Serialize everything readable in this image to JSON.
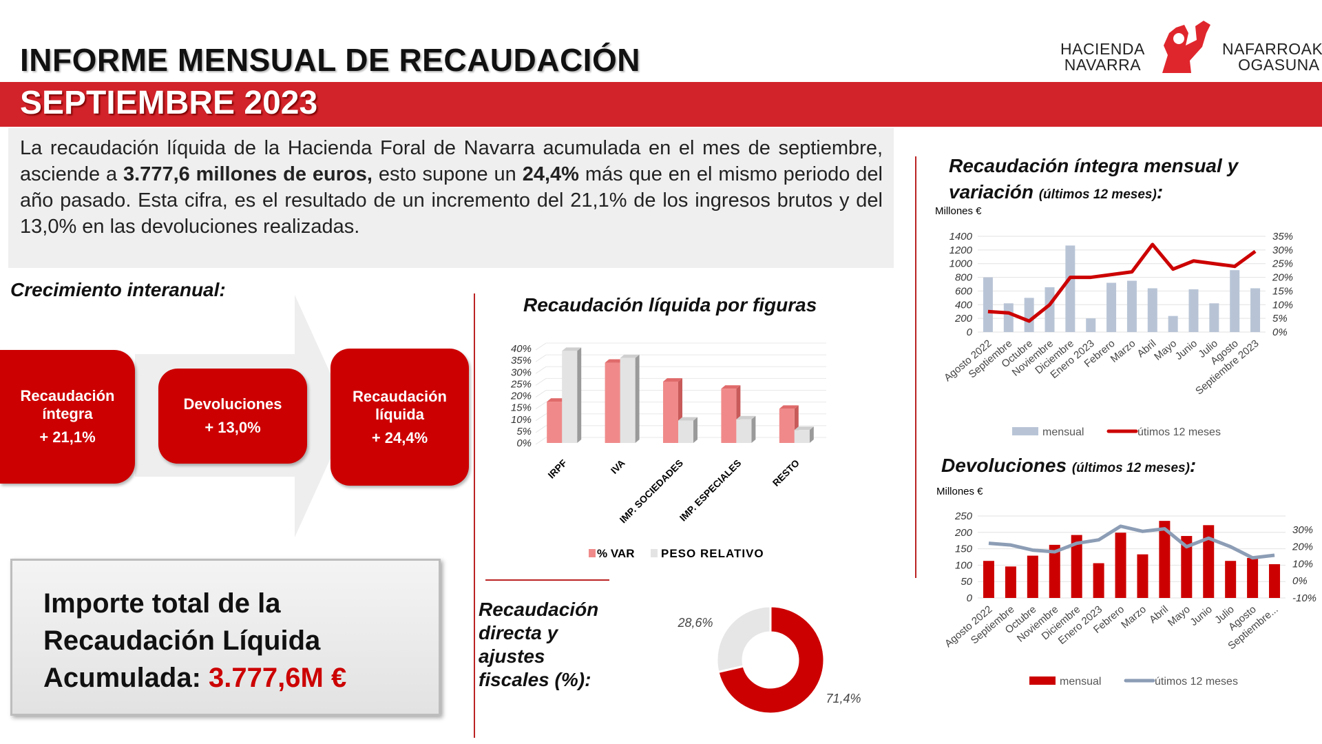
{
  "header": {
    "title": "INFORME MENSUAL DE RECAUDACIÓN",
    "subtitle": "SEPTIEMBRE 2023",
    "logo": {
      "left_line1": "HACIENDA",
      "left_line2": "NAVARRA",
      "right_line1": "NAFARROAKO",
      "right_line2": "OGASUNA"
    }
  },
  "intro": {
    "p1": "La recaudación líquida de la Hacienda Foral de Navarra acumulada en el mes de septiembre, asciende a ",
    "b1": "3.777,6 millones de euros,",
    "p2": " esto supone un ",
    "b2": "24,4%",
    "p3": " más que en el mismo periodo del año pasado. Esta cifra, es el resultado de un incremento del 21,1% de los ingresos brutos y del 13,0% en las devoluciones  realizadas."
  },
  "growth": {
    "title": "Crecimiento interanual:",
    "boxes": [
      {
        "label": "Recaudación íntegra",
        "value": "+ 21,1%"
      },
      {
        "label": "Devoluciones",
        "value": "+ 13,0%"
      },
      {
        "label": "Recaudación líquida",
        "value": "+ 24,4%"
      }
    ]
  },
  "total": {
    "line1": "Importe total de la",
    "line2": "Recaudación Líquida",
    "line3": "Acumulada: ",
    "amount": "3.777,6M €"
  },
  "colors": {
    "brand_red": "#d2232a",
    "bar_red": "#cc0000",
    "pink": "#f08a8a",
    "bar_gray": "#b8c4d6",
    "line_gray": "#8c9db5"
  },
  "chart_data": [
    {
      "id": "figuras",
      "type": "bar",
      "title": "Recaudación líquida por figuras",
      "categories": [
        "IRPF",
        "IVA",
        "IMP. SOCIEDADES",
        "IMP. ESPECIALES",
        "RESTO"
      ],
      "series": [
        {
          "name": "% VAR",
          "values": [
            17.5,
            34,
            26,
            23,
            14.5
          ]
        },
        {
          "name": "PESO RELATIVO",
          "values": [
            39,
            36,
            9.5,
            10,
            5.5
          ]
        }
      ],
      "ylim": [
        0,
        40
      ],
      "yticks": [
        "0%",
        "5%",
        "10%",
        "15%",
        "20%",
        "25%",
        "30%",
        "35%",
        "40%"
      ],
      "legend": "bottom",
      "grid": true,
      "style": "3d"
    },
    {
      "id": "directa",
      "type": "pie",
      "title": "Recaudación directa y ajustes fiscales (%):",
      "values": [
        71.4,
        28.6
      ],
      "labels": [
        "71,4%",
        "28,6%"
      ],
      "donut": true
    },
    {
      "id": "integra",
      "type": "bar",
      "title": "Recaudación íntegra mensual y variación",
      "title_small": "(últimos 12 meses)",
      "title_end": ":",
      "ylabel": "Millones €",
      "categories": [
        "Agosto 2022",
        "Septiembre",
        "Octubre",
        "Noviembre",
        "Diciembre",
        "Enero 2023",
        "Febrero",
        "Marzo",
        "Abril",
        "Mayo",
        "Junio",
        "Julio",
        "Agosto",
        "Septiembre 2023"
      ],
      "series": [
        {
          "name": "mensual",
          "type": "bar",
          "values": [
            800,
            420,
            500,
            655,
            1265,
            200,
            720,
            750,
            640,
            235,
            625,
            420,
            905,
            640
          ]
        },
        {
          "name": "útimos 12 meses",
          "type": "line",
          "axis": "right",
          "values": [
            7.5,
            7,
            4,
            10,
            20,
            20,
            21,
            22,
            32,
            23,
            26,
            25,
            24,
            29.5
          ]
        }
      ],
      "ylim": [
        0,
        1400
      ],
      "yticks": [
        "0",
        "200",
        "400",
        "600",
        "800",
        "1000",
        "1200",
        "1400"
      ],
      "y2lim": [
        0,
        35
      ],
      "y2ticks": [
        "0%",
        "5%",
        "10%",
        "15%",
        "20%",
        "25%",
        "30%",
        "35%"
      ],
      "legend": "bottom",
      "grid": true
    },
    {
      "id": "devoluciones",
      "type": "bar",
      "title": "Devoluciones",
      "title_small": "(últimos 12 meses)",
      "title_end": ":",
      "ylabel": "Millones €",
      "categories": [
        "Agosto 2022",
        "Septiembre",
        "Octubre",
        "Noviembre",
        "Diciembre",
        "Enero 2023",
        "Febrero",
        "Marzo",
        "Abril",
        "Mayo",
        "Junio",
        "Julio",
        "Agosto",
        "Septiembre..."
      ],
      "series": [
        {
          "name": "mensual",
          "type": "bar",
          "values": [
            113,
            96,
            129,
            162,
            192,
            106,
            199,
            133,
            235,
            189,
            222,
            113,
            122,
            103
          ]
        },
        {
          "name": "útimos 12 meses",
          "type": "line",
          "axis": "right",
          "values": [
            22,
            21,
            18,
            17,
            22,
            24,
            32,
            29,
            30.5,
            20,
            25,
            20,
            13.5,
            15
          ]
        }
      ],
      "ylim": [
        0,
        250
      ],
      "yticks": [
        "0",
        "50",
        "100",
        "150",
        "200",
        "250"
      ],
      "y2lim": [
        -10,
        38
      ],
      "y2ticks": [
        "-10%",
        "0%",
        "10%",
        "20%",
        "30%"
      ],
      "legend": "bottom",
      "grid": true
    }
  ]
}
